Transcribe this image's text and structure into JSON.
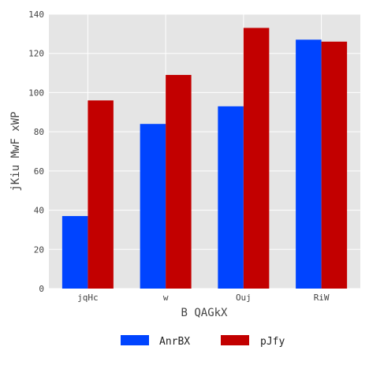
{
  "chart_data": {
    "type": "bar",
    "categories": [
      "jqHc",
      "w",
      "Ouj",
      "RiW"
    ],
    "series": [
      {
        "name": "AnrBX",
        "values": [
          37,
          84,
          93,
          127
        ],
        "color": "#0044ff"
      },
      {
        "name": "pJfy",
        "values": [
          96,
          109,
          133,
          126
        ],
        "color": "#c20000"
      }
    ],
    "xlabel": "B QAGkX",
    "ylabel": "jKiu MwF xWP",
    "ylim": [
      0,
      140
    ],
    "yticks": [
      0,
      20,
      40,
      60,
      80,
      100,
      120,
      140
    ],
    "grid": true,
    "legend_position": "bottom-center",
    "plot_background": "#e5e5e5",
    "grid_color": "#ffffff"
  }
}
